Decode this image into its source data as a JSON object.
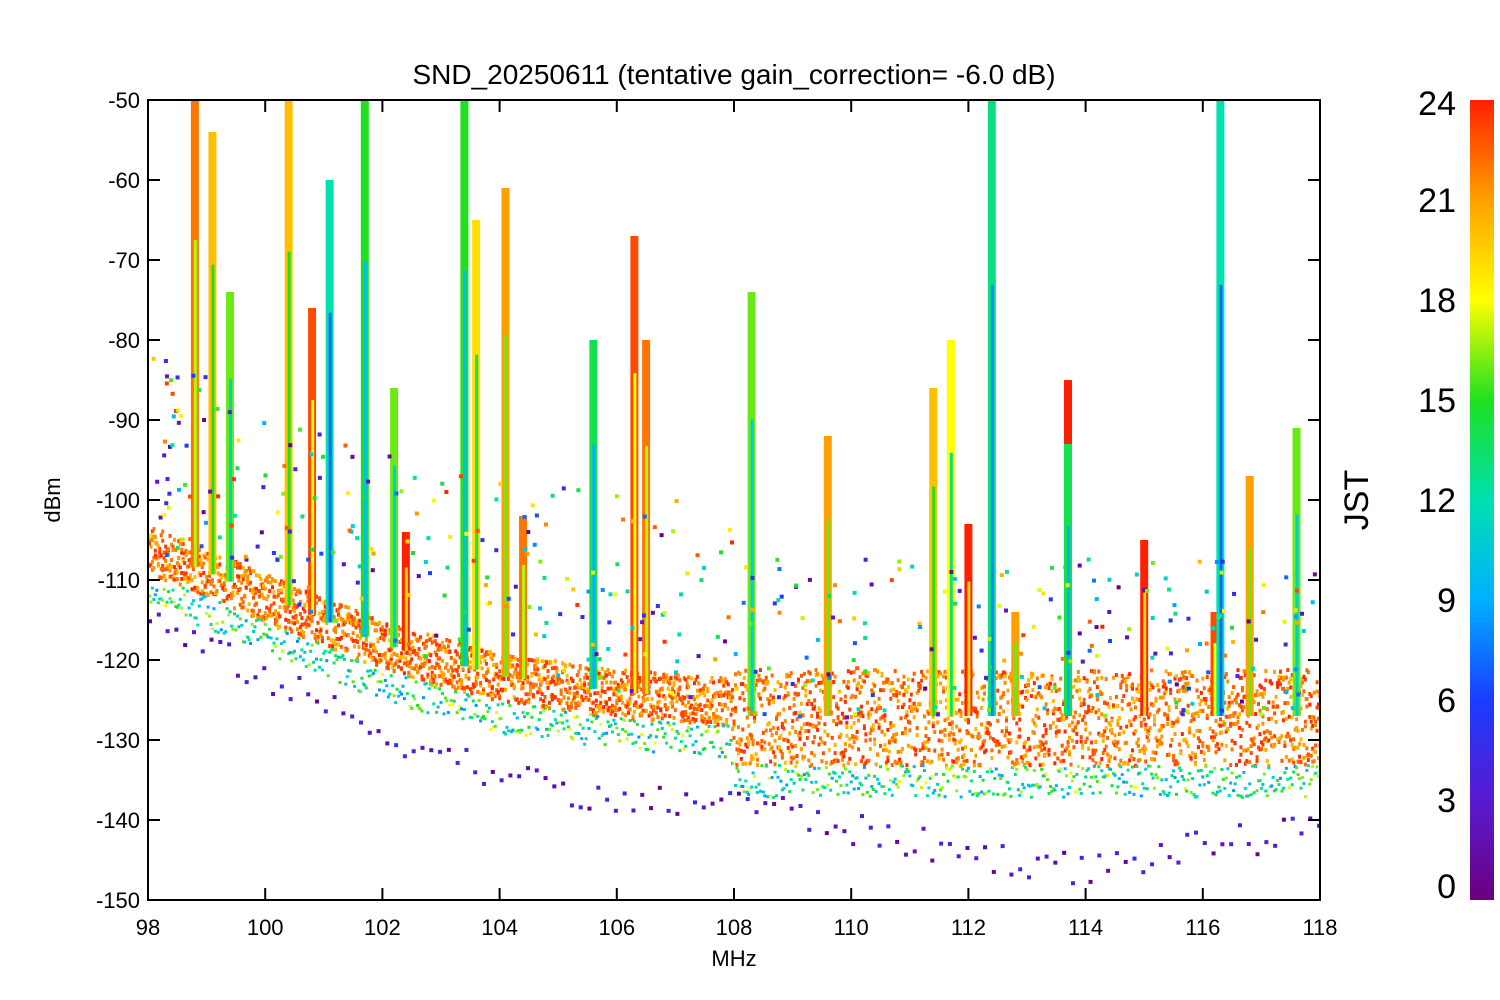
{
  "chart_data": {
    "type": "scatter",
    "title": "SND_20250611 (tentative gain_correction= -6.0 dB)",
    "xlabel": "MHz",
    "ylabel": "dBm",
    "xlim": [
      98,
      118
    ],
    "ylim": [
      -150,
      -50
    ],
    "x_ticks": [
      "98",
      "100",
      "102",
      "104",
      "106",
      "108",
      "110",
      "112",
      "114",
      "116",
      "118"
    ],
    "y_ticks": [
      "-50",
      "-60",
      "-70",
      "-80",
      "-90",
      "-100",
      "-110",
      "-120",
      "-130",
      "-140",
      "-150"
    ],
    "colorbar": {
      "label": "JST",
      "range": [
        0,
        24
      ],
      "ticks": [
        "0",
        "3",
        "6",
        "9",
        "12",
        "15",
        "18",
        "21",
        "24"
      ],
      "colormap": "rainbow (purple → blue → cyan → green → yellow → orange → red)"
    },
    "grid": false,
    "noise_floor_approx": [
      {
        "x": 98,
        "y": -106
      },
      {
        "x": 100,
        "y": -112
      },
      {
        "x": 102,
        "y": -118
      },
      {
        "x": 104,
        "y": -122
      },
      {
        "x": 106,
        "y": -124
      },
      {
        "x": 107.9,
        "y": -125
      },
      {
        "x": 108,
        "y": -127
      },
      {
        "x": 118,
        "y": -127
      }
    ],
    "lowest_trace_approx": [
      {
        "x": 98,
        "y": -115
      },
      {
        "x": 100,
        "y": -122
      },
      {
        "x": 102,
        "y": -129
      },
      {
        "x": 104,
        "y": -134
      },
      {
        "x": 106,
        "y": -138
      },
      {
        "x": 108,
        "y": -137
      },
      {
        "x": 110,
        "y": -141
      },
      {
        "x": 112,
        "y": -144
      },
      {
        "x": 114,
        "y": -146
      },
      {
        "x": 116,
        "y": -143
      },
      {
        "x": 118,
        "y": -141
      }
    ],
    "signals": [
      {
        "freq": 98.8,
        "top": -50,
        "jst": 22
      },
      {
        "freq": 99.1,
        "top": -54,
        "jst": 20
      },
      {
        "freq": 99.4,
        "top": -74,
        "jst": 16
      },
      {
        "freq": 100.4,
        "top": -50,
        "jst": 20
      },
      {
        "freq": 100.8,
        "top": -76,
        "jst": 23
      },
      {
        "freq": 101.1,
        "top": -60,
        "jst": 12
      },
      {
        "freq": 101.7,
        "top": -50,
        "jst": 15
      },
      {
        "freq": 102.2,
        "top": -86,
        "jst": 16
      },
      {
        "freq": 102.4,
        "top": -104,
        "jst": 24
      },
      {
        "freq": 103.4,
        "top": -50,
        "jst": 15
      },
      {
        "freq": 103.6,
        "top": -65,
        "jst": 19
      },
      {
        "freq": 104.1,
        "top": -61,
        "jst": 21
      },
      {
        "freq": 104.4,
        "top": -102,
        "jst": 22
      },
      {
        "freq": 105.6,
        "top": -80,
        "jst": 14
      },
      {
        "freq": 106.3,
        "top": -67,
        "jst": 23
      },
      {
        "freq": 106.5,
        "top": -80,
        "jst": 22
      },
      {
        "freq": 108.3,
        "top": -74,
        "jst": 16
      },
      {
        "freq": 109.6,
        "top": -92,
        "jst": 21
      },
      {
        "freq": 111.4,
        "top": -86,
        "jst": 20
      },
      {
        "freq": 111.7,
        "top": -80,
        "jst": 18
      },
      {
        "freq": 112.0,
        "top": -103,
        "jst": 24
      },
      {
        "freq": 112.4,
        "top": -50,
        "jst": 13
      },
      {
        "freq": 112.8,
        "top": -114,
        "jst": 21
      },
      {
        "freq": 113.7,
        "top": -85,
        "jst": 24
      },
      {
        "freq": 113.7,
        "top": -93,
        "jst": 14
      },
      {
        "freq": 115.0,
        "top": -105,
        "jst": 24
      },
      {
        "freq": 116.2,
        "top": -114,
        "jst": 23
      },
      {
        "freq": 116.3,
        "top": -50,
        "jst": 12
      },
      {
        "freq": 116.8,
        "top": -97,
        "jst": 21
      },
      {
        "freq": 117.6,
        "top": -91,
        "jst": 16
      }
    ]
  }
}
